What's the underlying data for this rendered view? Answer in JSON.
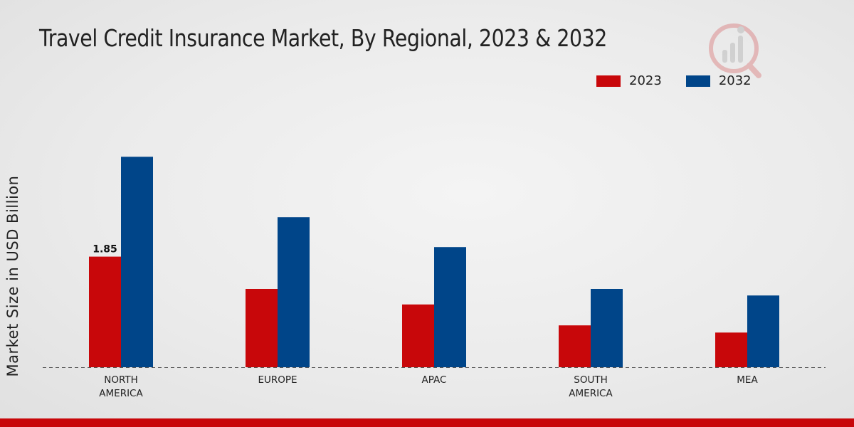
{
  "title": "Travel Credit Insurance Market, By Regional, 2023 & 2032",
  "colors": {
    "series_2023": "#c8070a",
    "series_2032": "#004589",
    "footer": "#c8070a",
    "baseline": "#555555"
  },
  "logo_icon": "brand-watermark-icon",
  "chart_data": {
    "type": "bar",
    "title": "Travel Credit Insurance Market, By Regional, 2023 & 2032",
    "xlabel": "",
    "ylabel": "Market Size in USD Billion",
    "ylim": [
      0,
      4.5
    ],
    "grid": false,
    "legend_position": "top-right",
    "categories": [
      [
        "NORTH",
        "AMERICA"
      ],
      [
        "EUROPE"
      ],
      [
        "APAC"
      ],
      [
        "SOUTH",
        "AMERICA"
      ],
      [
        "MEA"
      ]
    ],
    "series": [
      {
        "name": "2023",
        "values": [
          1.85,
          1.31,
          1.05,
          0.7,
          0.58
        ]
      },
      {
        "name": "2032",
        "values": [
          3.52,
          2.51,
          2.01,
          1.31,
          1.2
        ]
      }
    ],
    "data_labels": [
      {
        "series": 0,
        "index": 0,
        "text": "1.85"
      }
    ]
  }
}
